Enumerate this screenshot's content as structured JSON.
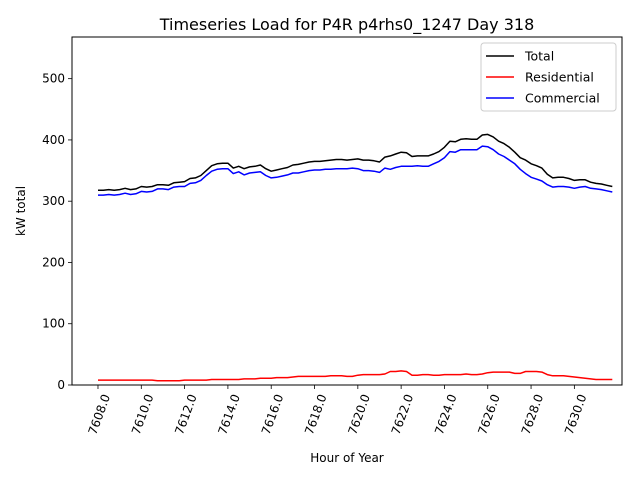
{
  "chart_data": {
    "type": "line",
    "title": "Timeseries Load for P4R p4rhs0_1247  Day 318",
    "xlabel": "Hour of Year",
    "ylabel": "kW total",
    "xlim": [
      7606.8,
      7632.2
    ],
    "ylim": [
      0,
      568
    ],
    "xticks": [
      7608,
      7610,
      7612,
      7614,
      7616,
      7618,
      7620,
      7622,
      7624,
      7626,
      7628,
      7630
    ],
    "xtick_labels": [
      "7608.0",
      "7610.0",
      "7612.0",
      "7614.0",
      "7616.0",
      "7618.0",
      "7620.0",
      "7622.0",
      "7624.0",
      "7626.0",
      "7628.0",
      "7630.0"
    ],
    "yticks": [
      0,
      100,
      200,
      300,
      400,
      500
    ],
    "ytick_labels": [
      "0",
      "100",
      "200",
      "300",
      "400",
      "500"
    ],
    "grid": false,
    "legend_position": "top-right",
    "x": [
      7608,
      7608.25,
      7608.5,
      7608.75,
      7609,
      7609.25,
      7609.5,
      7609.75,
      7610,
      7610.25,
      7610.5,
      7610.75,
      7611,
      7611.25,
      7611.5,
      7611.75,
      7612,
      7612.25,
      7612.5,
      7612.75,
      7613,
      7613.25,
      7613.5,
      7613.75,
      7614,
      7614.25,
      7614.5,
      7614.75,
      7615,
      7615.25,
      7615.5,
      7615.75,
      7616,
      7616.25,
      7616.5,
      7616.75,
      7617,
      7617.25,
      7617.5,
      7617.75,
      7618,
      7618.25,
      7618.5,
      7618.75,
      7619,
      7619.25,
      7619.5,
      7619.75,
      7620,
      7620.25,
      7620.5,
      7620.75,
      7621,
      7621.25,
      7621.5,
      7621.75,
      7622,
      7622.25,
      7622.5,
      7622.75,
      7623,
      7623.25,
      7623.5,
      7623.75,
      7624,
      7624.25,
      7624.5,
      7624.75,
      7625,
      7625.25,
      7625.5,
      7625.75,
      7626,
      7626.25,
      7626.5,
      7626.75,
      7627,
      7627.25,
      7627.5,
      7627.75,
      7628,
      7628.25,
      7628.5,
      7628.75,
      7629,
      7629.25,
      7629.5,
      7629.75,
      7630,
      7630.25,
      7630.5,
      7630.75,
      7631,
      7631.25,
      7631.5,
      7631.75
    ],
    "series": [
      {
        "name": "Total",
        "color": "#000000",
        "values": [
          318,
          318,
          319,
          318,
          319,
          321,
          319,
          320,
          324,
          323,
          324,
          327,
          327,
          326,
          330,
          331,
          332,
          337,
          338,
          342,
          350,
          358,
          361,
          362,
          362,
          354,
          357,
          353,
          356,
          357,
          359,
          353,
          349,
          351,
          353,
          355,
          359,
          360,
          362,
          364,
          365,
          365,
          366,
          367,
          368,
          368,
          367,
          368,
          369,
          367,
          367,
          366,
          364,
          372,
          374,
          377,
          380,
          379,
          373,
          374,
          374,
          374,
          377,
          381,
          388,
          398,
          397,
          401,
          402,
          401,
          401,
          408,
          409,
          405,
          398,
          394,
          388,
          380,
          371,
          367,
          361,
          358,
          354,
          344,
          338,
          339,
          339,
          337,
          334,
          335,
          335,
          331,
          329,
          328,
          326,
          324
        ]
      },
      {
        "name": "Residential",
        "color": "#ff0000",
        "values": [
          8,
          8,
          8,
          8,
          8,
          8,
          8,
          8,
          8,
          8,
          8,
          7,
          7,
          7,
          7,
          7,
          8,
          8,
          8,
          8,
          8,
          9,
          9,
          9,
          9,
          9,
          9,
          10,
          10,
          10,
          11,
          11,
          11,
          12,
          12,
          12,
          13,
          14,
          14,
          14,
          14,
          14,
          14,
          15,
          15,
          15,
          14,
          14,
          16,
          17,
          17,
          17,
          17,
          18,
          22,
          22,
          23,
          22,
          16,
          16,
          17,
          17,
          16,
          16,
          17,
          17,
          17,
          17,
          18,
          17,
          17,
          18,
          20,
          21,
          21,
          21,
          21,
          19,
          19,
          22,
          22,
          22,
          21,
          17,
          15,
          15,
          15,
          14,
          13,
          12,
          11,
          10,
          9,
          9,
          9,
          9
        ]
      },
      {
        "name": "Commercial",
        "color": "#0000ff",
        "values": [
          310,
          310,
          311,
          310,
          311,
          313,
          311,
          312,
          316,
          315,
          316,
          320,
          320,
          319,
          323,
          324,
          324,
          329,
          330,
          334,
          342,
          349,
          352,
          353,
          353,
          345,
          348,
          343,
          346,
          347,
          348,
          342,
          338,
          339,
          341,
          343,
          346,
          346,
          348,
          350,
          351,
          351,
          352,
          352,
          353,
          353,
          353,
          354,
          353,
          350,
          350,
          349,
          347,
          354,
          352,
          355,
          357,
          357,
          357,
          358,
          357,
          357,
          361,
          365,
          371,
          381,
          380,
          384,
          384,
          384,
          384,
          390,
          389,
          384,
          377,
          373,
          367,
          361,
          352,
          345,
          339,
          336,
          333,
          327,
          323,
          324,
          324,
          323,
          321,
          323,
          324,
          321,
          320,
          319,
          317,
          315
        ]
      }
    ]
  }
}
